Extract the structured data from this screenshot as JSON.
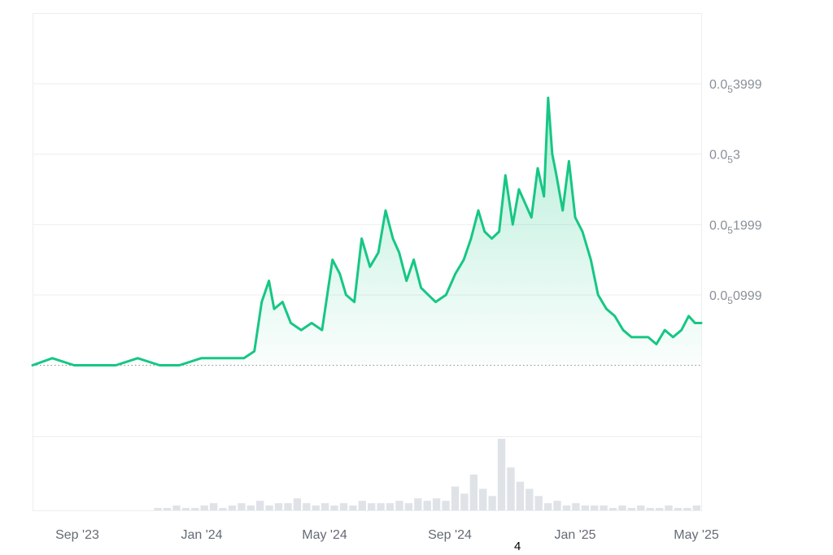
{
  "chart_data": {
    "type": "area",
    "x_axis": {
      "tick_labels": [
        "Sep '23",
        "Jan '24",
        "May '24",
        "Sep '24",
        "Jan '25",
        "May '25"
      ],
      "range": [
        "2023-08",
        "2025-05"
      ]
    },
    "y_axis": {
      "ticks": [
        {
          "base": "0.0",
          "sub": "5",
          "rest": "0999"
        },
        {
          "base": "0.0",
          "sub": "5",
          "rest": "1999"
        },
        {
          "base": "0.0",
          "sub": "5",
          "rest": "3"
        },
        {
          "base": "0.0",
          "sub": "5",
          "rest": "3999"
        }
      ],
      "tick_values": [
        9.99e-07,
        1.999e-06,
        3e-06,
        3.999e-06
      ],
      "range": [
        0,
        5e-06
      ],
      "position": "right"
    },
    "baseline_value": 0,
    "grid": true,
    "line_color": "#16c784",
    "series": [
      {
        "x": [
          "2023-08-01",
          "2023-08-20",
          "2023-09-10",
          "2023-10-01",
          "2023-10-20",
          "2023-11-10",
          "2023-12-01",
          "2023-12-20",
          "2024-01-10",
          "2024-02-01",
          "2024-02-20",
          "2024-03-01",
          "2024-03-08",
          "2024-03-15",
          "2024-03-20",
          "2024-03-28",
          "2024-04-05",
          "2024-04-15",
          "2024-04-25",
          "2024-05-05",
          "2024-05-15",
          "2024-05-22",
          "2024-05-28",
          "2024-06-05",
          "2024-06-12",
          "2024-06-20",
          "2024-06-28",
          "2024-07-05",
          "2024-07-12",
          "2024-07-18",
          "2024-07-25",
          "2024-08-01",
          "2024-08-08",
          "2024-08-15",
          "2024-08-22",
          "2024-09-01",
          "2024-09-10",
          "2024-09-18",
          "2024-09-25",
          "2024-10-02",
          "2024-10-08",
          "2024-10-15",
          "2024-10-22",
          "2024-10-28",
          "2024-11-04",
          "2024-11-10",
          "2024-11-16",
          "2024-11-22",
          "2024-11-28",
          "2024-12-04",
          "2024-12-08",
          "2024-12-12",
          "2024-12-16",
          "2024-12-22",
          "2024-12-28",
          "2025-01-03",
          "2025-01-10",
          "2025-01-18",
          "2025-01-25",
          "2025-02-02",
          "2025-02-10",
          "2025-02-18",
          "2025-02-26",
          "2025-03-06",
          "2025-03-14",
          "2025-03-22",
          "2025-03-30",
          "2025-04-07",
          "2025-04-15",
          "2025-04-22",
          "2025-04-28",
          "2025-05-04"
        ],
        "values": [
          0.0,
          1e-07,
          0.0,
          0.0,
          0.0,
          1e-07,
          0.0,
          0.0,
          1e-07,
          1e-07,
          1e-07,
          2e-07,
          9e-07,
          1.2e-06,
          8e-07,
          9e-07,
          6e-07,
          5e-07,
          6e-07,
          5e-07,
          1.5e-06,
          1.3e-06,
          1e-06,
          9e-07,
          1.8e-06,
          1.4e-06,
          1.6e-06,
          2.2e-06,
          1.8e-06,
          1.6e-06,
          1.2e-06,
          1.5e-06,
          1.1e-06,
          1e-06,
          9e-07,
          1e-06,
          1.3e-06,
          1.5e-06,
          1.8e-06,
          2.2e-06,
          1.9e-06,
          1.8e-06,
          1.9e-06,
          2.7e-06,
          2e-06,
          2.5e-06,
          2.3e-06,
          2.1e-06,
          2.8e-06,
          2.4e-06,
          3.8e-06,
          3e-06,
          2.7e-06,
          2.2e-06,
          2.9e-06,
          2.1e-06,
          1.9e-06,
          1.5e-06,
          1e-06,
          8e-07,
          7e-07,
          5e-07,
          4e-07,
          4e-07,
          4e-07,
          3e-07,
          5e-07,
          4e-07,
          5e-07,
          7e-07,
          6e-07,
          6e-07
        ]
      }
    ],
    "volume": {
      "color": "#dfe3e8",
      "values": [
        0,
        0,
        0,
        0,
        0,
        0,
        0,
        0,
        0,
        0,
        0,
        0,
        0,
        1,
        1,
        2,
        1,
        1,
        2,
        3,
        1,
        2,
        3,
        2,
        4,
        2,
        3,
        3,
        5,
        3,
        2,
        3,
        2,
        3,
        2,
        4,
        3,
        3,
        3,
        4,
        3,
        5,
        4,
        5,
        4,
        10,
        7,
        15,
        9,
        6,
        30,
        18,
        12,
        9,
        6,
        3,
        4,
        2,
        3,
        2,
        2,
        2,
        1,
        2,
        1,
        2,
        1,
        1,
        2,
        1,
        1,
        2
      ]
    }
  },
  "page_number": "4"
}
